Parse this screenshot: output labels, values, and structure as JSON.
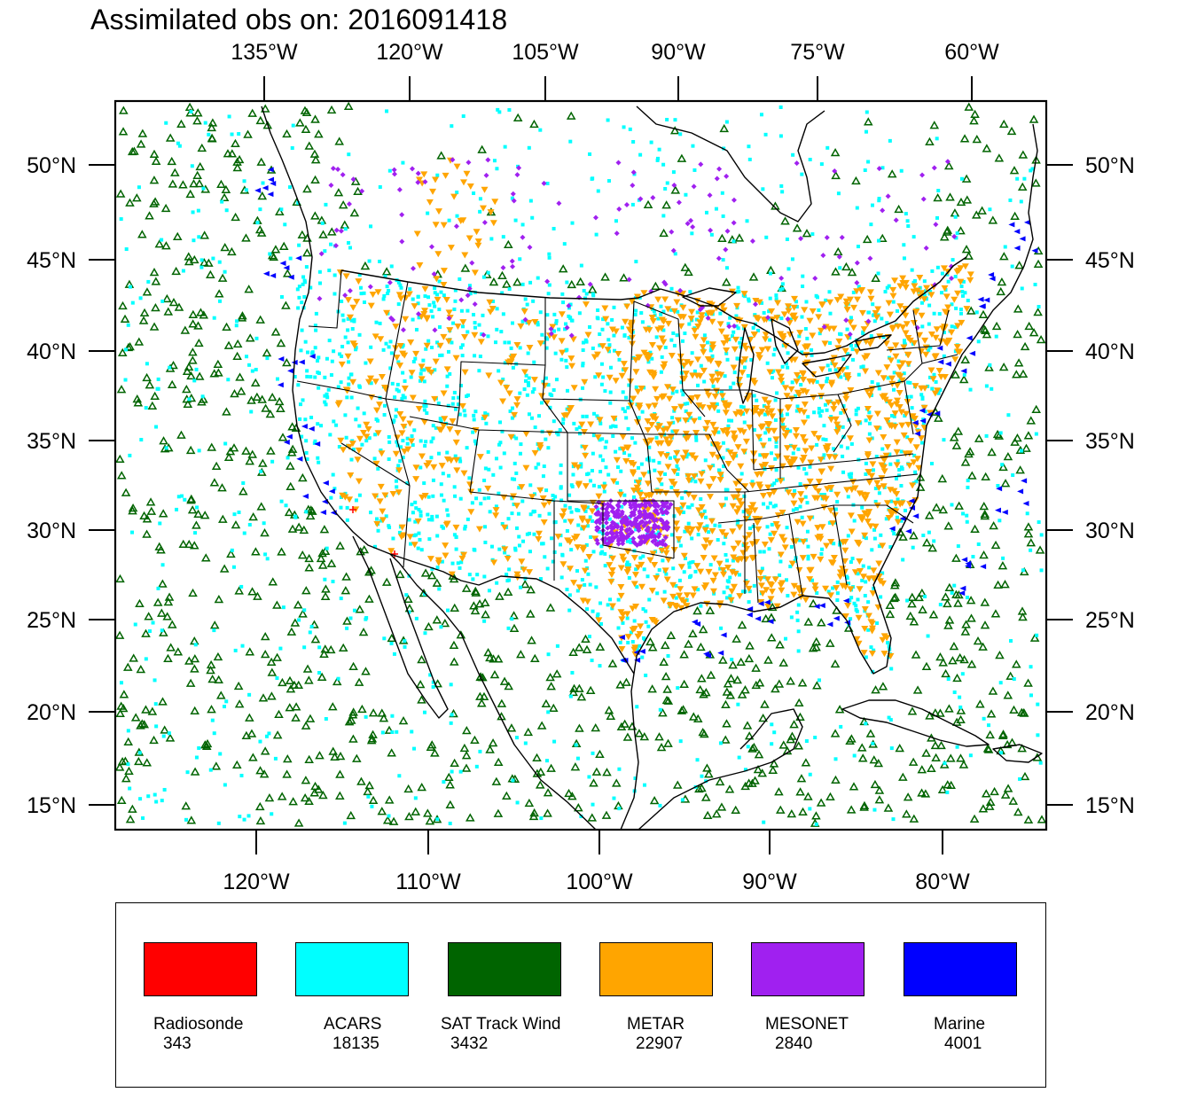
{
  "title": "Assimilated obs on: 2016091418",
  "map": {
    "top_lon_labels": [
      "135°W",
      "120°W",
      "105°W",
      "90°W",
      "75°W",
      "60°W"
    ],
    "bottom_lon_labels": [
      "120°W",
      "110°W",
      "100°W",
      "90°W",
      "80°W"
    ],
    "lat_labels": [
      "50°N",
      "45°N",
      "40°N",
      "35°N",
      "30°N",
      "25°N",
      "20°N",
      "15°N"
    ]
  },
  "legend": [
    {
      "name": "Radiosonde",
      "count": "343",
      "color": "#ff0000"
    },
    {
      "name": "ACARS",
      "count": "18135",
      "color": "#00ffff"
    },
    {
      "name": "SAT Track Wind",
      "count": "3432",
      "color": "#006400"
    },
    {
      "name": "METAR",
      "count": "22907",
      "color": "#ffa500"
    },
    {
      "name": "MESONET",
      "count": "2840",
      "color": "#a020f0"
    },
    {
      "name": "Marine",
      "count": "4001",
      "color": "#0000ff"
    }
  ]
}
